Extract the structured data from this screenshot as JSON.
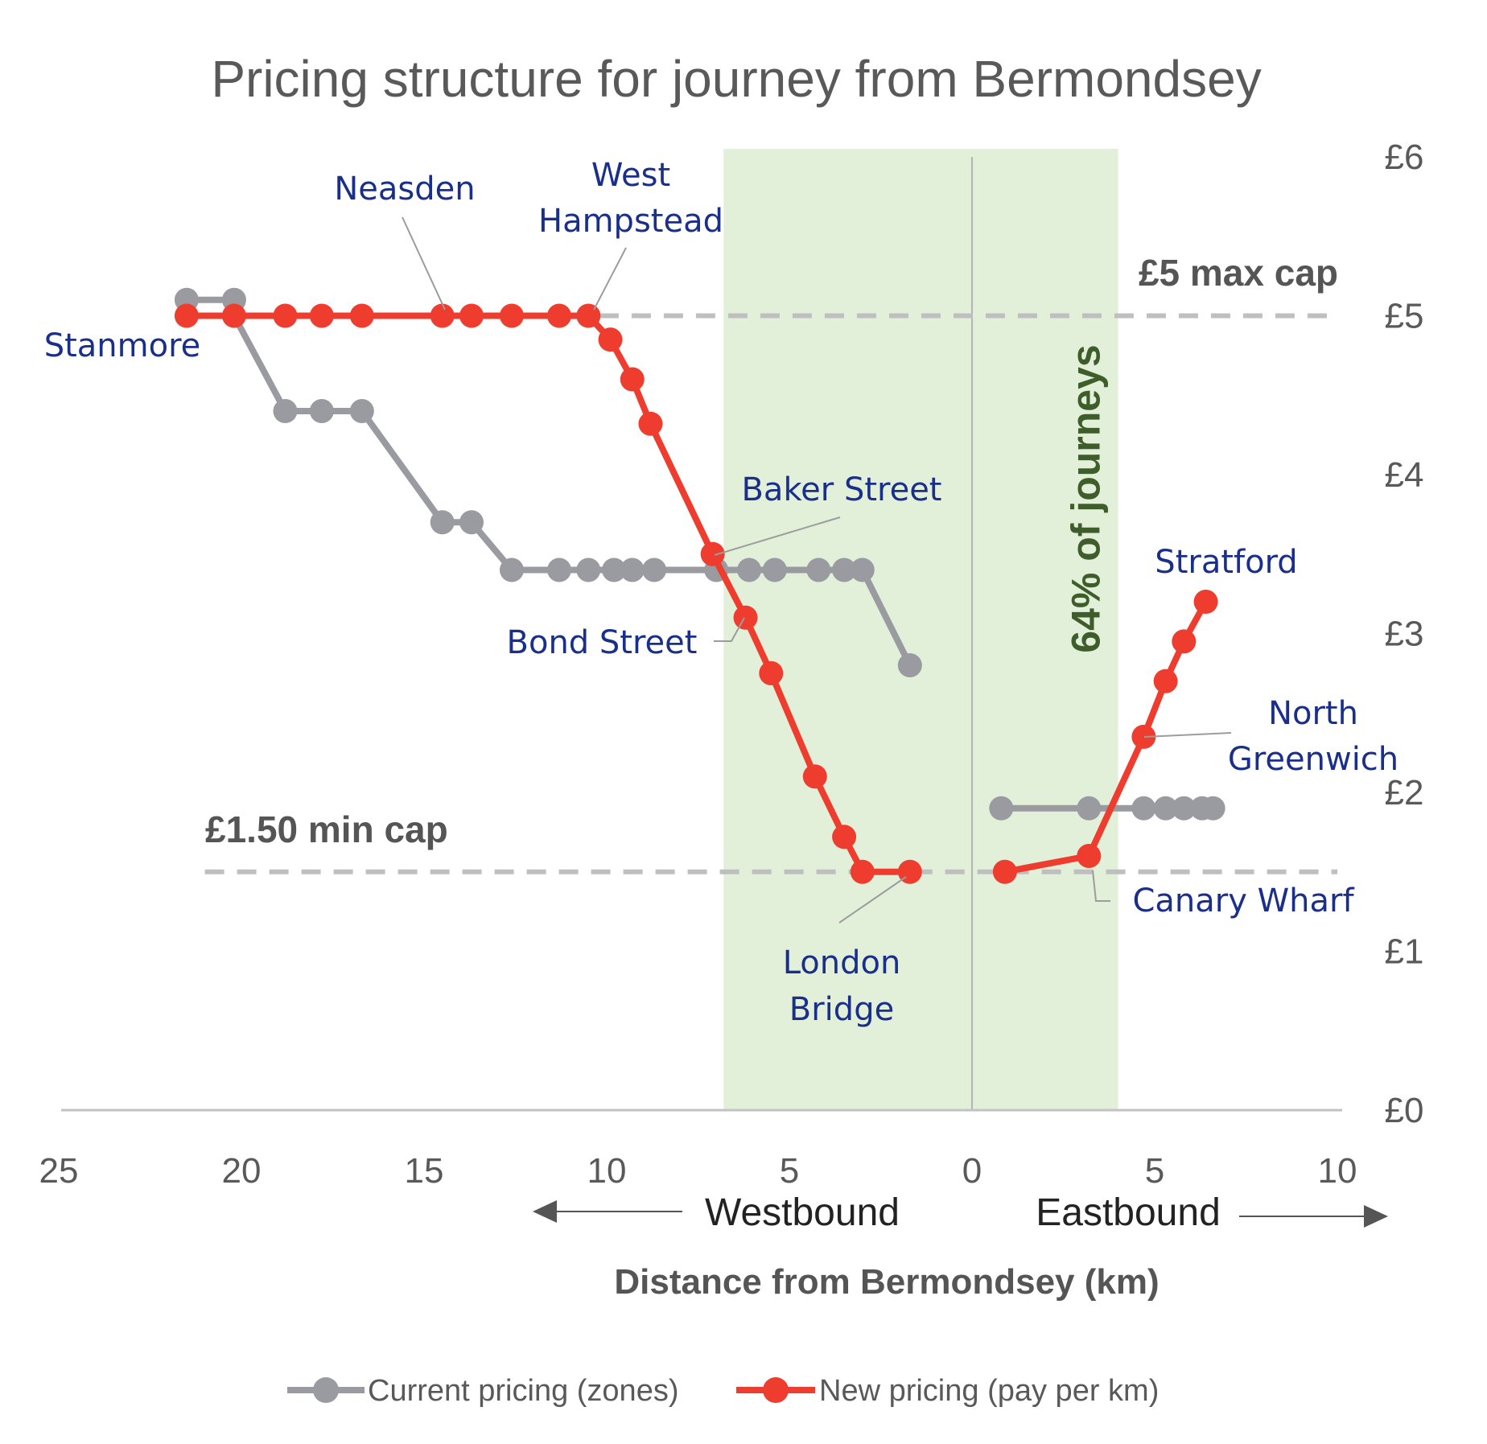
{
  "chart_data": {
    "type": "line",
    "title": "Pricing structure for journey from Bermondsey",
    "xlabel": "Distance from Bermondsey (km)",
    "ylabel": "",
    "xlim": [
      -25,
      10
    ],
    "ylim": [
      0,
      6
    ],
    "x_ticks": [
      {
        "value": -25,
        "label": "25"
      },
      {
        "value": -20,
        "label": "20"
      },
      {
        "value": -15,
        "label": "15"
      },
      {
        "value": -10,
        "label": "10"
      },
      {
        "value": -5,
        "label": "5"
      },
      {
        "value": 0,
        "label": "0"
      },
      {
        "value": 5,
        "label": "5"
      },
      {
        "value": 10,
        "label": "10"
      }
    ],
    "y_ticks": [
      {
        "value": 0,
        "label": "£0"
      },
      {
        "value": 1,
        "label": "£1"
      },
      {
        "value": 2,
        "label": "£2"
      },
      {
        "value": 3,
        "label": "£3"
      },
      {
        "value": 4,
        "label": "£4"
      },
      {
        "value": 5,
        "label": "£5"
      },
      {
        "value": 6,
        "label": "£6"
      }
    ],
    "directions": {
      "west": "Westbound",
      "east": "Eastbound"
    },
    "shaded_band": {
      "x_from": -6.8,
      "x_to": 4.0,
      "label": "64% of journeys"
    },
    "reference_lines": [
      {
        "name": "max",
        "y": 5.0,
        "x_from": -10.2,
        "x_to": 10,
        "label": "£5 max cap"
      },
      {
        "name": "min",
        "y": 1.5,
        "x_from": -21,
        "x_to": 10,
        "label": "£1.50 min cap"
      }
    ],
    "series": [
      {
        "name": "Current pricing (zones)",
        "color": "#999ba0",
        "segments": [
          {
            "points": [
              [
                -21.5,
                5.1
              ],
              [
                -20.2,
                5.1
              ],
              [
                -20.2,
                5.0
              ],
              [
                -18.8,
                4.4
              ],
              [
                -17.8,
                4.4
              ],
              [
                -16.7,
                4.4
              ],
              [
                -14.5,
                3.7
              ],
              [
                -13.7,
                3.7
              ],
              [
                -12.6,
                3.4
              ],
              [
                -11.3,
                3.4
              ],
              [
                -10.5,
                3.4
              ],
              [
                -9.8,
                3.4
              ],
              [
                -9.3,
                3.4
              ],
              [
                -8.7,
                3.4
              ],
              [
                -7.0,
                3.4
              ],
              [
                -6.1,
                3.4
              ],
              [
                -5.4,
                3.4
              ],
              [
                -4.2,
                3.4
              ],
              [
                -3.5,
                3.4
              ],
              [
                -3.0,
                3.4
              ],
              [
                -1.7,
                2.8
              ]
            ]
          },
          {
            "points": [
              [
                0.8,
                1.9
              ],
              [
                3.2,
                1.9
              ],
              [
                4.7,
                1.9
              ],
              [
                5.3,
                1.9
              ],
              [
                5.8,
                1.9
              ],
              [
                6.3,
                1.9
              ],
              [
                6.6,
                1.9
              ]
            ]
          }
        ]
      },
      {
        "name": "New pricing (pay per km)",
        "color": "#ee3d2f",
        "segments": [
          {
            "points": [
              [
                -21.5,
                5.0
              ],
              [
                -20.2,
                5.0
              ],
              [
                -18.8,
                5.0
              ],
              [
                -17.8,
                5.0
              ],
              [
                -16.7,
                5.0
              ],
              [
                -14.5,
                5.0
              ],
              [
                -13.7,
                5.0
              ],
              [
                -12.6,
                5.0
              ],
              [
                -11.3,
                5.0
              ],
              [
                -10.5,
                5.0
              ],
              [
                -9.9,
                4.85
              ],
              [
                -9.3,
                4.6
              ],
              [
                -8.8,
                4.32
              ],
              [
                -7.1,
                3.5
              ],
              [
                -6.2,
                3.1
              ],
              [
                -5.5,
                2.75
              ],
              [
                -4.3,
                2.1
              ],
              [
                -3.5,
                1.72
              ],
              [
                -3.0,
                1.5
              ],
              [
                -1.7,
                1.5
              ]
            ]
          },
          {
            "points": [
              [
                0.9,
                1.5
              ],
              [
                3.2,
                1.6
              ],
              [
                4.7,
                2.35
              ],
              [
                5.3,
                2.7
              ],
              [
                5.8,
                2.95
              ],
              [
                6.4,
                3.2
              ]
            ]
          }
        ]
      }
    ],
    "station_labels": [
      {
        "id": "stanmore",
        "lines": [
          "Stanmore"
        ]
      },
      {
        "id": "neasden",
        "lines": [
          "Neasden"
        ]
      },
      {
        "id": "west-hampstead",
        "lines": [
          "West",
          "Hampstead"
        ]
      },
      {
        "id": "baker-street",
        "lines": [
          "Baker Street"
        ]
      },
      {
        "id": "bond-street",
        "lines": [
          "Bond Street"
        ]
      },
      {
        "id": "london-bridge",
        "lines": [
          "London",
          "Bridge"
        ]
      },
      {
        "id": "stratford",
        "lines": [
          "Stratford"
        ]
      },
      {
        "id": "north-greenwich",
        "lines": [
          "North",
          "Greenwich"
        ]
      },
      {
        "id": "canary-wharf",
        "lines": [
          "Canary Wharf"
        ]
      }
    ],
    "legend": [
      {
        "label": "Current pricing (zones)",
        "color": "#999ba0"
      },
      {
        "label": "New pricing (pay per km)",
        "color": "#ee3d2f"
      }
    ],
    "legend_position": "bottom"
  }
}
